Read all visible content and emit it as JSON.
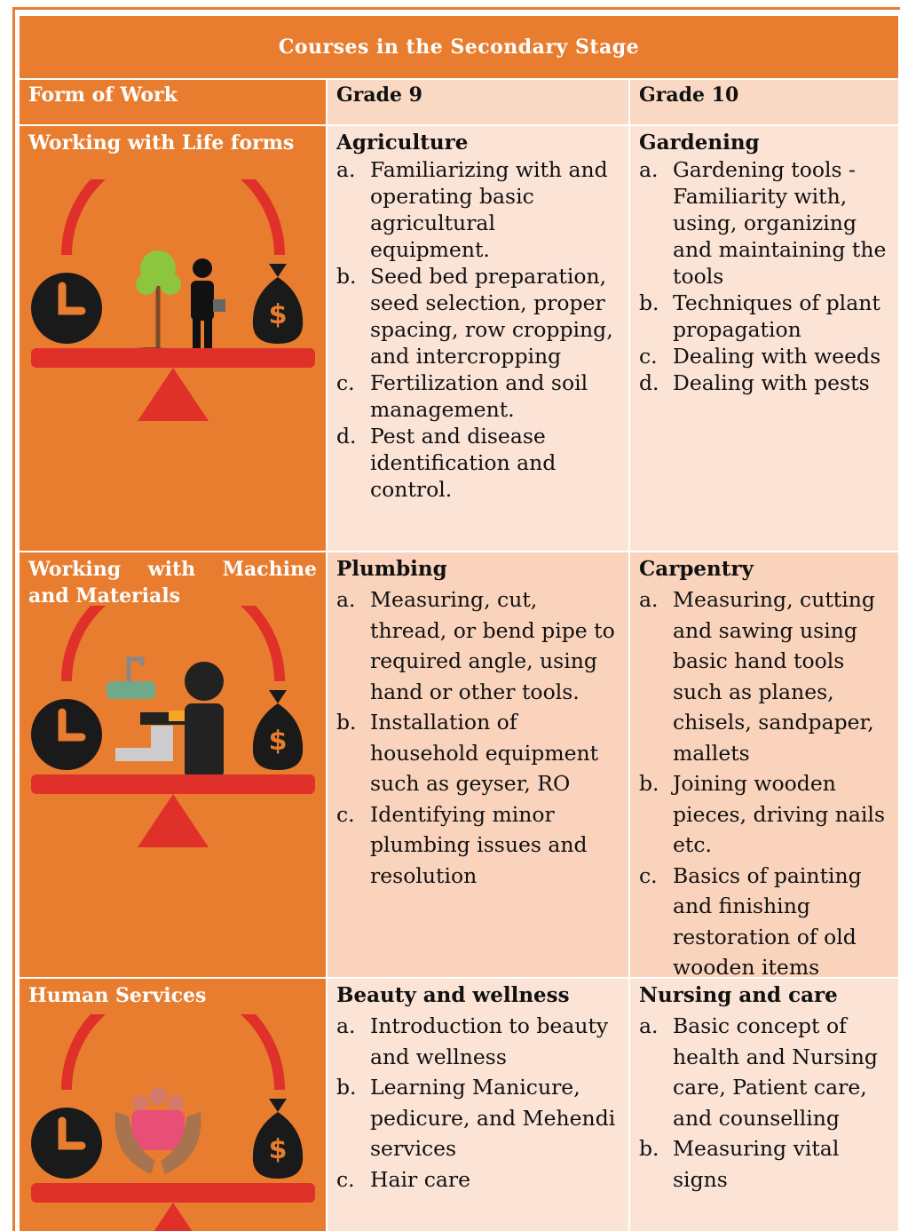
{
  "title": "Courses in the Secondary Stage",
  "headers": [
    "Form of Work",
    "Grade 9",
    "Grade 10"
  ],
  "rows": [
    {
      "form": "Working with Life forms",
      "grade_9": {
        "course": "Agriculture",
        "items": [
          {
            "marker": "a.",
            "text": "Familiarizing with and operating basic agricultural equipment."
          },
          {
            "marker": "b.",
            "text": "Seed bed preparation, seed selection, proper spacing, row cropping, and intercropping"
          },
          {
            "marker": "c.",
            "text": "Fertilization and soil management."
          },
          {
            "marker": "d.",
            "text": "Pest and disease identification and control."
          }
        ]
      },
      "grade_10": {
        "course": "Gardening",
        "items": [
          {
            "marker": "a.",
            "text": "Gardening tools - Familiarity with, using, organizing and maintaining the tools"
          },
          {
            "marker": "b.",
            "text": "Techniques of plant propagation"
          },
          {
            "marker": "c.",
            "text": "Dealing with weeds"
          },
          {
            "marker": "d.",
            "text": "Dealing with pests"
          }
        ]
      }
    },
    {
      "form": "Working with Machine and Materials",
      "grade_9": {
        "course": "Plumbing",
        "items": [
          {
            "marker": "a.",
            "text": "Measuring, cut, thread, or bend pipe to required angle, using hand or other tools."
          },
          {
            "marker": "b.",
            "text": "Installation of household equipment such as geyser, RO"
          },
          {
            "marker": "c.",
            "text": "Identifying minor plumbing issues and resolution"
          }
        ]
      },
      "grade_10": {
        "course": "Carpentry",
        "items": [
          {
            "marker": "a.",
            "text": "Measuring, cutting and sawing using basic hand tools such as planes, chisels, sandpaper, mallets"
          },
          {
            "marker": "b.",
            "text": "Joining wooden pieces, driving nails etc."
          },
          {
            "marker": "c.",
            "text": "Basics of painting and finishing restoration of old wooden items"
          }
        ]
      }
    },
    {
      "form": "Human Services",
      "grade_9": {
        "course": "Beauty and wellness",
        "items": [
          {
            "marker": "a.",
            "text": "Introduction to beauty and wellness"
          },
          {
            "marker": "b.",
            "text": "Learning Manicure, pedicure, and Mehendi services"
          },
          {
            "marker": "c.",
            "text": "Hair care"
          }
        ]
      },
      "grade_10": {
        "course": "Nursing and care",
        "items": [
          {
            "marker": "a.",
            "text": "Basic concept of health and Nursing care, Patient care, and counselling"
          },
          {
            "marker": "b.",
            "text": "Measuring vital signs"
          }
        ]
      }
    }
  ]
}
